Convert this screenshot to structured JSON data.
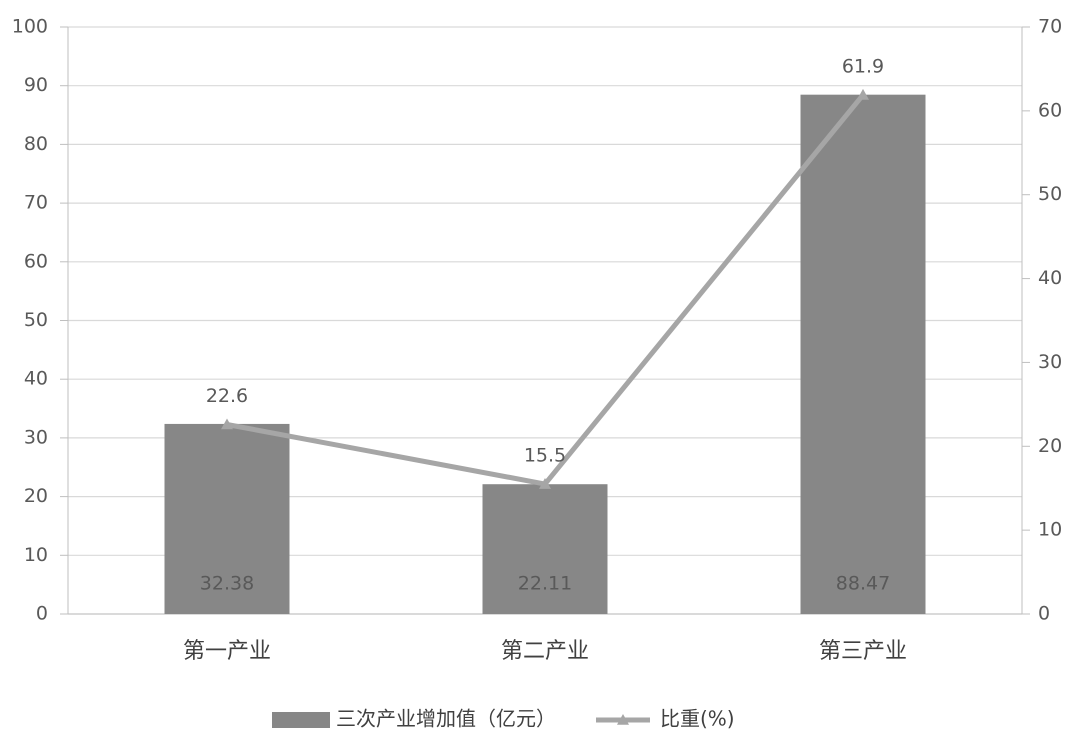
{
  "chart_data": {
    "type": "combo",
    "categories": [
      "第一产业",
      "第二产业",
      "第三产业"
    ],
    "series": [
      {
        "name": "三次产业增加值（亿元）",
        "type": "bar",
        "color": "#878787",
        "values": [
          32.38,
          22.11,
          88.47
        ]
      },
      {
        "name": "比重(%)",
        "type": "line",
        "axis": "y2",
        "color": "#a6a6a6",
        "values": [
          22.6,
          15.5,
          61.9
        ]
      }
    ],
    "ylim": [
      0,
      100
    ],
    "yticks": [
      0,
      10,
      20,
      30,
      40,
      50,
      60,
      70,
      80,
      90,
      100
    ],
    "y2lim": [
      0,
      70
    ],
    "y2ticks": [
      0,
      10,
      20,
      30,
      40,
      50,
      60,
      70
    ],
    "grid": true,
    "legend": "bottom"
  }
}
